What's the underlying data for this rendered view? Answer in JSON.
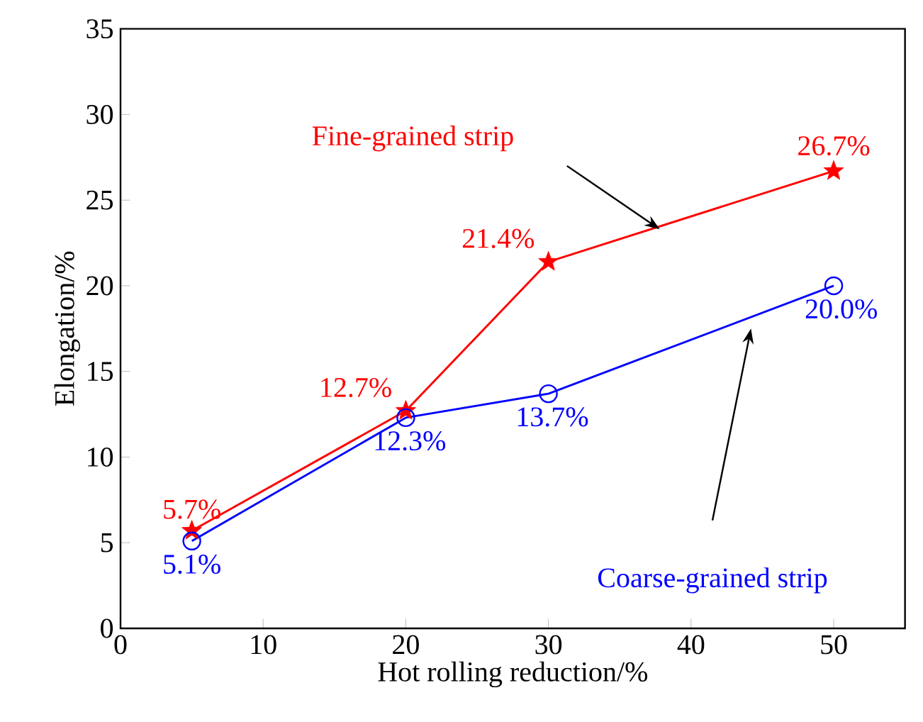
{
  "chart_data": {
    "type": "line",
    "xlabel": "Hot rolling reduction/%",
    "ylabel": "Elongation/%",
    "x": [
      5,
      20,
      30,
      50
    ],
    "series": [
      {
        "name": "Fine-grained strip",
        "color": "#ff0000",
        "marker": "star",
        "values": [
          5.7,
          12.7,
          21.4,
          26.7
        ],
        "value_labels": [
          "5.7%",
          "12.7%",
          "21.4%",
          "26.7%"
        ]
      },
      {
        "name": "Coarse-grained strip",
        "color": "#0000ff",
        "marker": "circle",
        "values": [
          5.1,
          12.3,
          13.7,
          20.0
        ],
        "value_labels": [
          "5.1%",
          "12.3%",
          "13.7%",
          "20.0%"
        ]
      }
    ],
    "xlim": [
      0,
      55
    ],
    "ylim": [
      0,
      35
    ],
    "xticks": [
      0,
      10,
      20,
      30,
      40,
      50
    ],
    "yticks": [
      0,
      5,
      10,
      15,
      20,
      25,
      30,
      35
    ],
    "legend": false,
    "grid": false,
    "line_style": "solid"
  }
}
